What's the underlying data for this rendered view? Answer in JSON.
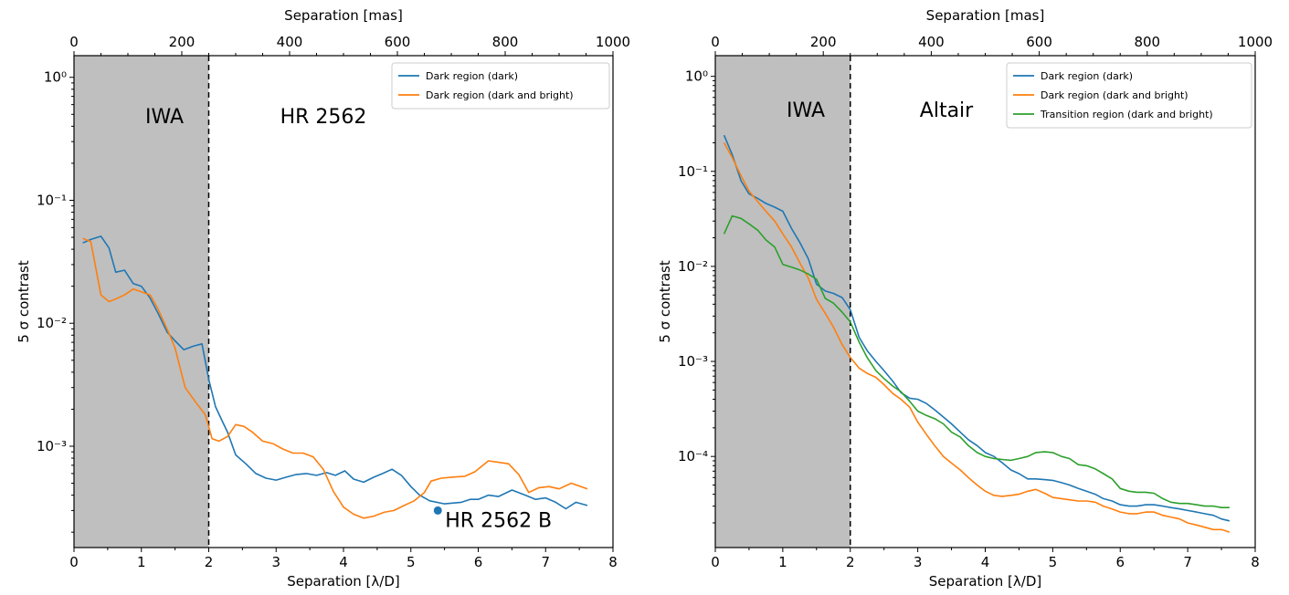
{
  "chart_data": [
    {
      "type": "line",
      "xlabel": "Separation [λ/D]",
      "ylabel": "5 σ contrast",
      "top_xlabel": "Separation [mas]",
      "xlim": [
        0,
        8
      ],
      "ylim": [
        0.00015,
        1.5
      ],
      "yscale": "log",
      "xticks": [
        "0",
        "1",
        "2",
        "3",
        "4",
        "5",
        "6",
        "7",
        "8"
      ],
      "top_xticks": [
        "0",
        "200",
        "400",
        "600",
        "800",
        "1000"
      ],
      "top_xlim": [
        0,
        1000
      ],
      "yticks": [
        {
          "value": 1,
          "label": "10⁰"
        },
        {
          "value": 0.1,
          "label": "10⁻¹"
        },
        {
          "value": 0.01,
          "label": "10⁻²"
        },
        {
          "value": 0.001,
          "label": "10⁻³"
        }
      ],
      "shaded_region": {
        "x": [
          0,
          2
        ],
        "label": "IWA",
        "color": "#bfbfbf"
      },
      "target_label": "HR 2562",
      "companion": {
        "label": "HR 2562 B",
        "x": 5.4,
        "y": 0.0003,
        "color": "#1f77b4"
      },
      "legend_position": "top-right",
      "series": [
        {
          "name": "Dark region (dark)",
          "color": "#1f77b4",
          "x": [
            0.13,
            0.25,
            0.4,
            0.52,
            0.62,
            0.75,
            0.88,
            1.0,
            1.13,
            1.25,
            1.38,
            1.5,
            1.63,
            1.77,
            1.9,
            2.0,
            2.1,
            2.2,
            2.28,
            2.4,
            2.55,
            2.7,
            2.85,
            3.0,
            3.15,
            3.3,
            3.45,
            3.6,
            3.75,
            3.88,
            4.02,
            4.15,
            4.3,
            4.45,
            4.58,
            4.72,
            4.86,
            5.0,
            5.13,
            5.28,
            5.5,
            5.75,
            5.88,
            6.0,
            6.15,
            6.3,
            6.5,
            6.7,
            6.85,
            7.0,
            7.15,
            7.3,
            7.45,
            7.62
          ],
          "y": [
            0.045,
            0.048,
            0.051,
            0.041,
            0.026,
            0.027,
            0.021,
            0.02,
            0.016,
            0.012,
            0.0085,
            0.0072,
            0.0061,
            0.0065,
            0.0068,
            0.0035,
            0.0021,
            0.0016,
            0.0013,
            0.00085,
            0.00072,
            0.0006,
            0.00055,
            0.00053,
            0.00056,
            0.00059,
            0.0006,
            0.00058,
            0.00061,
            0.00058,
            0.00063,
            0.00054,
            0.00051,
            0.00056,
            0.0006,
            0.00065,
            0.00058,
            0.00047,
            0.0004,
            0.00036,
            0.00034,
            0.00035,
            0.00037,
            0.00037,
            0.0004,
            0.00039,
            0.00044,
            0.0004,
            0.00037,
            0.00038,
            0.00035,
            0.00031,
            0.00035,
            0.00033
          ]
        },
        {
          "name": "Dark region (dark and bright)",
          "color": "#ff7f0e",
          "x": [
            0.13,
            0.25,
            0.4,
            0.52,
            0.65,
            0.75,
            0.88,
            1.0,
            1.13,
            1.25,
            1.4,
            1.5,
            1.65,
            1.8,
            1.95,
            2.05,
            2.15,
            2.28,
            2.4,
            2.52,
            2.65,
            2.8,
            2.95,
            3.1,
            3.25,
            3.4,
            3.55,
            3.7,
            3.85,
            4.0,
            4.15,
            4.3,
            4.45,
            4.6,
            4.75,
            4.9,
            5.05,
            5.2,
            5.3,
            5.45,
            5.6,
            5.8,
            5.95,
            6.15,
            6.3,
            6.45,
            6.6,
            6.75,
            6.9,
            7.05,
            7.2,
            7.38,
            7.62
          ],
          "y": [
            0.049,
            0.046,
            0.017,
            0.015,
            0.016,
            0.017,
            0.019,
            0.018,
            0.017,
            0.013,
            0.0085,
            0.0063,
            0.003,
            0.0023,
            0.0018,
            0.00115,
            0.0011,
            0.0012,
            0.0015,
            0.00145,
            0.0013,
            0.0011,
            0.00105,
            0.00095,
            0.00088,
            0.00088,
            0.00082,
            0.00065,
            0.00043,
            0.00032,
            0.00028,
            0.00026,
            0.00027,
            0.00029,
            0.0003,
            0.00033,
            0.00036,
            0.00042,
            0.00052,
            0.00055,
            0.00056,
            0.00057,
            0.00062,
            0.00076,
            0.00074,
            0.00072,
            0.00059,
            0.00042,
            0.00046,
            0.00047,
            0.00045,
            0.0005,
            0.00045
          ]
        }
      ]
    },
    {
      "type": "line",
      "xlabel": "Separation [λ/D]",
      "ylabel": "5 σ contrast",
      "top_xlabel": "Separation [mas]",
      "xlim": [
        0,
        8
      ],
      "ylim": [
        1.1e-05,
        1.65
      ],
      "yscale": "log",
      "xticks": [
        "0",
        "1",
        "2",
        "3",
        "4",
        "5",
        "6",
        "7",
        "8"
      ],
      "top_xticks": [
        "0",
        "200",
        "400",
        "600",
        "800",
        "1000"
      ],
      "top_xlim": [
        0,
        1000
      ],
      "yticks": [
        {
          "value": 1,
          "label": "10⁰"
        },
        {
          "value": 0.1,
          "label": "10⁻¹"
        },
        {
          "value": 0.01,
          "label": "10⁻²"
        },
        {
          "value": 0.001,
          "label": "10⁻³"
        },
        {
          "value": 0.0001,
          "label": "10⁻⁴"
        }
      ],
      "shaded_region": {
        "x": [
          0,
          2
        ],
        "label": "IWA",
        "color": "#bfbfbf"
      },
      "target_label": "Altair",
      "legend_position": "top-right",
      "series": [
        {
          "name": "Dark region (dark)",
          "color": "#1f77b4",
          "x": [
            0.13,
            0.25,
            0.38,
            0.5,
            0.63,
            0.75,
            0.88,
            1.0,
            1.13,
            1.25,
            1.38,
            1.5,
            1.63,
            1.75,
            1.88,
            2.0,
            2.13,
            2.25,
            2.38,
            2.5,
            2.63,
            2.75,
            2.88,
            3.0,
            3.13,
            3.25,
            3.38,
            3.5,
            3.63,
            3.75,
            3.88,
            4.0,
            4.13,
            4.25,
            4.38,
            4.5,
            4.63,
            4.75,
            4.88,
            5.0,
            5.13,
            5.25,
            5.38,
            5.5,
            5.63,
            5.75,
            5.88,
            6.0,
            6.13,
            6.25,
            6.38,
            6.5,
            6.63,
            6.75,
            6.88,
            7.0,
            7.13,
            7.25,
            7.38,
            7.5,
            7.62
          ],
          "y": [
            0.24,
            0.15,
            0.08,
            0.058,
            0.052,
            0.046,
            0.042,
            0.038,
            0.025,
            0.018,
            0.012,
            0.0065,
            0.0055,
            0.0052,
            0.0047,
            0.0035,
            0.0018,
            0.0013,
            0.001,
            0.0008,
            0.00062,
            0.00047,
            0.00041,
            0.0004,
            0.00036,
            0.00031,
            0.00026,
            0.00022,
            0.00018,
            0.00015,
            0.00013,
            0.00011,
            0.0001,
            8.6e-05,
            7.2e-05,
            6.6e-05,
            5.8e-05,
            5.8e-05,
            5.7e-05,
            5.6e-05,
            5.3e-05,
            5e-05,
            4.6e-05,
            4.3e-05,
            4e-05,
            3.6e-05,
            3.4e-05,
            3.1e-05,
            3e-05,
            3e-05,
            3.1e-05,
            3.1e-05,
            3e-05,
            2.9e-05,
            2.8e-05,
            2.7e-05,
            2.6e-05,
            2.5e-05,
            2.4e-05,
            2.2e-05,
            2.1e-05
          ]
        },
        {
          "name": "Dark region (dark and bright)",
          "color": "#ff7f0e",
          "x": [
            0.13,
            0.25,
            0.38,
            0.5,
            0.63,
            0.75,
            0.88,
            1.0,
            1.13,
            1.25,
            1.38,
            1.5,
            1.63,
            1.75,
            1.88,
            2.0,
            2.13,
            2.25,
            2.38,
            2.5,
            2.63,
            2.75,
            2.88,
            3.0,
            3.13,
            3.25,
            3.38,
            3.5,
            3.63,
            3.75,
            3.88,
            4.0,
            4.13,
            4.25,
            4.38,
            4.5,
            4.63,
            4.75,
            4.88,
            5.0,
            5.13,
            5.25,
            5.38,
            5.5,
            5.63,
            5.75,
            5.88,
            6.0,
            6.13,
            6.25,
            6.38,
            6.5,
            6.63,
            6.75,
            6.88,
            7.0,
            7.13,
            7.25,
            7.38,
            7.5,
            7.62
          ],
          "y": [
            0.2,
            0.14,
            0.09,
            0.062,
            0.048,
            0.038,
            0.03,
            0.022,
            0.016,
            0.011,
            0.0075,
            0.0045,
            0.0032,
            0.0023,
            0.0015,
            0.0011,
            0.00085,
            0.00075,
            0.00068,
            0.00057,
            0.00046,
            0.0004,
            0.00033,
            0.00023,
            0.00017,
            0.00013,
            0.0001,
            8.5e-05,
            7.2e-05,
            6e-05,
            5e-05,
            4.3e-05,
            3.9e-05,
            3.8e-05,
            3.9e-05,
            4e-05,
            4.3e-05,
            4.5e-05,
            4.1e-05,
            3.7e-05,
            3.6e-05,
            3.5e-05,
            3.4e-05,
            3.4e-05,
            3.3e-05,
            3e-05,
            2.8e-05,
            2.6e-05,
            2.5e-05,
            2.5e-05,
            2.6e-05,
            2.6e-05,
            2.4e-05,
            2.3e-05,
            2.2e-05,
            2e-05,
            1.9e-05,
            1.8e-05,
            1.7e-05,
            1.7e-05,
            1.6e-05
          ]
        },
        {
          "name": "Transition region (dark and bright)",
          "color": "#2ca02c",
          "x": [
            0.13,
            0.25,
            0.38,
            0.5,
            0.63,
            0.75,
            0.88,
            1.0,
            1.13,
            1.25,
            1.38,
            1.5,
            1.63,
            1.75,
            1.88,
            2.0,
            2.13,
            2.25,
            2.38,
            2.5,
            2.63,
            2.75,
            2.88,
            3.0,
            3.13,
            3.25,
            3.38,
            3.5,
            3.63,
            3.75,
            3.88,
            4.0,
            4.13,
            4.25,
            4.38,
            4.5,
            4.63,
            4.75,
            4.88,
            5.0,
            5.13,
            5.25,
            5.38,
            5.5,
            5.63,
            5.75,
            5.88,
            6.0,
            6.13,
            6.25,
            6.38,
            6.5,
            6.63,
            6.75,
            6.88,
            7.0,
            7.13,
            7.25,
            7.38,
            7.5,
            7.62
          ],
          "y": [
            0.022,
            0.034,
            0.032,
            0.028,
            0.024,
            0.019,
            0.016,
            0.0105,
            0.0098,
            0.0092,
            0.0083,
            0.0073,
            0.0046,
            0.0041,
            0.0033,
            0.0026,
            0.0016,
            0.0011,
            0.0008,
            0.00066,
            0.00055,
            0.00048,
            0.00038,
            0.0003,
            0.00027,
            0.00025,
            0.00022,
            0.00018,
            0.00016,
            0.00013,
            0.00011,
            0.0001,
            9.5e-05,
            9.3e-05,
            9.1e-05,
            9.5e-05,
            0.0001,
            0.00011,
            0.000112,
            0.00011,
            0.0001,
            9.5e-05,
            8.2e-05,
            8e-05,
            7.4e-05,
            6.6e-05,
            5.8e-05,
            4.6e-05,
            4.3e-05,
            4.2e-05,
            4.2e-05,
            4.1e-05,
            3.6e-05,
            3.3e-05,
            3.2e-05,
            3.2e-05,
            3.1e-05,
            3e-05,
            3e-05,
            2.9e-05,
            2.9e-05
          ]
        }
      ]
    }
  ]
}
